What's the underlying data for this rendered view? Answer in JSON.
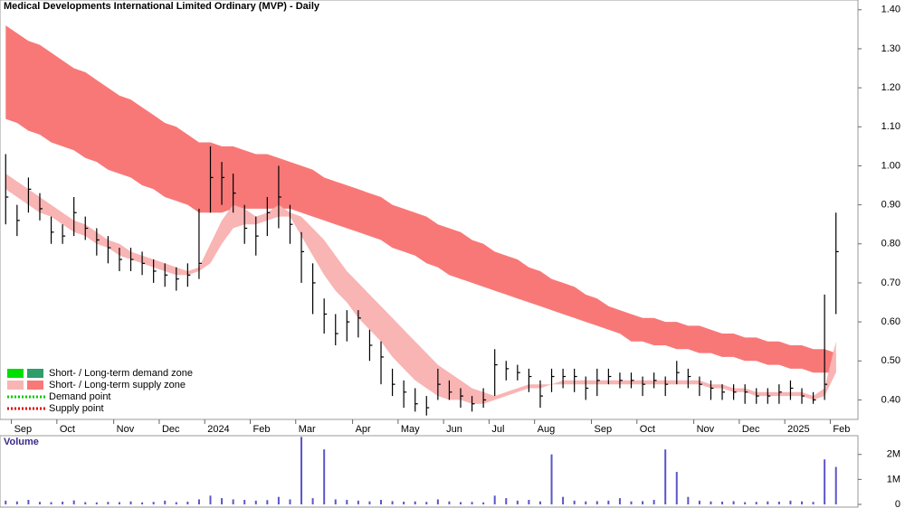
{
  "chart_data": [
    {
      "type": "ohlc",
      "title": "Medical Developments International Limited Ordinary (MVP) - Daily",
      "categories": [
        null,
        "Sep",
        null,
        null,
        null,
        "Oct",
        null,
        null,
        null,
        null,
        "Nov",
        null,
        null,
        null,
        "Dec",
        null,
        null,
        null,
        "2024",
        null,
        null,
        null,
        "Feb",
        null,
        null,
        null,
        "Mar",
        null,
        null,
        null,
        null,
        "Apr",
        null,
        null,
        null,
        "May",
        null,
        null,
        null,
        "Jun",
        null,
        null,
        null,
        "Jul",
        null,
        null,
        null,
        "Aug",
        null,
        null,
        null,
        null,
        "Sep",
        null,
        null,
        null,
        "Oct",
        null,
        null,
        null,
        null,
        "Nov",
        null,
        null,
        null,
        "Dec",
        null,
        null,
        null,
        "2025",
        null,
        null,
        null,
        "Feb"
      ],
      "high": [
        1.03,
        0.9,
        0.97,
        0.93,
        0.87,
        0.85,
        0.92,
        0.87,
        0.84,
        0.82,
        0.79,
        0.79,
        0.78,
        0.76,
        0.75,
        0.74,
        0.75,
        0.89,
        1.05,
        1.01,
        0.98,
        0.9,
        0.87,
        0.92,
        1.0,
        0.9,
        0.83,
        0.75,
        0.66,
        0.62,
        0.63,
        0.63,
        0.58,
        0.55,
        0.48,
        0.45,
        0.43,
        0.41,
        0.48,
        0.45,
        0.43,
        0.41,
        0.43,
        0.53,
        0.5,
        0.49,
        0.48,
        0.45,
        0.48,
        0.48,
        0.48,
        0.46,
        0.48,
        0.48,
        0.47,
        0.47,
        0.46,
        0.47,
        0.46,
        0.5,
        0.48,
        0.46,
        0.45,
        0.44,
        0.44,
        0.44,
        0.43,
        0.43,
        0.44,
        0.45,
        0.43,
        0.42,
        0.67,
        0.88
      ],
      "low": [
        0.85,
        0.82,
        0.88,
        0.86,
        0.8,
        0.8,
        0.82,
        0.81,
        0.77,
        0.75,
        0.73,
        0.73,
        0.72,
        0.7,
        0.69,
        0.68,
        0.69,
        0.71,
        0.88,
        0.9,
        0.88,
        0.8,
        0.77,
        0.82,
        0.84,
        0.8,
        0.7,
        0.62,
        0.57,
        0.54,
        0.55,
        0.56,
        0.5,
        0.44,
        0.41,
        0.38,
        0.37,
        0.36,
        0.4,
        0.4,
        0.38,
        0.37,
        0.38,
        0.41,
        0.45,
        0.45,
        0.42,
        0.38,
        0.42,
        0.43,
        0.42,
        0.4,
        0.41,
        0.44,
        0.43,
        0.43,
        0.41,
        0.43,
        0.41,
        0.44,
        0.43,
        0.41,
        0.4,
        0.4,
        0.4,
        0.39,
        0.39,
        0.39,
        0.39,
        0.4,
        0.39,
        0.39,
        0.4,
        0.62
      ],
      "close": [
        0.92,
        0.86,
        0.94,
        0.89,
        0.83,
        0.82,
        0.88,
        0.84,
        0.81,
        0.79,
        0.76,
        0.76,
        0.75,
        0.73,
        0.72,
        0.71,
        0.72,
        0.75,
        0.97,
        0.97,
        0.93,
        0.84,
        0.82,
        0.88,
        0.92,
        0.85,
        0.78,
        0.7,
        0.62,
        0.57,
        0.6,
        0.61,
        0.54,
        0.51,
        0.44,
        0.42,
        0.39,
        0.38,
        0.44,
        0.42,
        0.41,
        0.39,
        0.4,
        0.49,
        0.48,
        0.47,
        0.46,
        0.41,
        0.46,
        0.46,
        0.46,
        0.43,
        0.45,
        0.46,
        0.45,
        0.45,
        0.44,
        0.45,
        0.44,
        0.47,
        0.46,
        0.44,
        0.43,
        0.42,
        0.42,
        0.42,
        0.41,
        0.41,
        0.42,
        0.43,
        0.41,
        0.4,
        0.44,
        0.78
      ],
      "color": "#000000",
      "bands": [
        {
          "color": "#f87878",
          "upper": [
            1.36,
            1.34,
            1.32,
            1.31,
            1.29,
            1.27,
            1.25,
            1.24,
            1.22,
            1.2,
            1.18,
            1.17,
            1.15,
            1.13,
            1.11,
            1.1,
            1.08,
            1.06,
            1.06,
            1.05,
            1.05,
            1.04,
            1.03,
            1.03,
            1.02,
            1.01,
            1.0,
            0.99,
            0.97,
            0.96,
            0.95,
            0.94,
            0.93,
            0.92,
            0.9,
            0.89,
            0.88,
            0.87,
            0.85,
            0.84,
            0.83,
            0.81,
            0.8,
            0.78,
            0.77,
            0.76,
            0.74,
            0.73,
            0.71,
            0.7,
            0.69,
            0.67,
            0.66,
            0.64,
            0.63,
            0.62,
            0.61,
            0.61,
            0.6,
            0.6,
            0.59,
            0.59,
            0.58,
            0.57,
            0.57,
            0.56,
            0.56,
            0.55,
            0.55,
            0.54,
            0.54,
            0.53,
            0.53,
            0.52
          ],
          "lower": [
            1.12,
            1.11,
            1.09,
            1.08,
            1.06,
            1.05,
            1.04,
            1.02,
            1.01,
            0.99,
            0.98,
            0.97,
            0.95,
            0.94,
            0.92,
            0.91,
            0.9,
            0.88,
            0.88,
            0.88,
            0.89,
            0.89,
            0.89,
            0.89,
            0.89,
            0.89,
            0.88,
            0.87,
            0.86,
            0.85,
            0.84,
            0.83,
            0.82,
            0.81,
            0.79,
            0.78,
            0.77,
            0.75,
            0.74,
            0.72,
            0.71,
            0.7,
            0.69,
            0.68,
            0.67,
            0.66,
            0.65,
            0.64,
            0.63,
            0.62,
            0.61,
            0.6,
            0.59,
            0.58,
            0.57,
            0.55,
            0.55,
            0.54,
            0.54,
            0.53,
            0.53,
            0.52,
            0.52,
            0.51,
            0.51,
            0.5,
            0.5,
            0.49,
            0.49,
            0.48,
            0.48,
            0.47,
            0.47,
            0.47
          ]
        },
        {
          "color": "#f9b4b4",
          "upper": [
            0.98,
            0.96,
            0.94,
            0.92,
            0.9,
            0.88,
            0.86,
            0.85,
            0.83,
            0.81,
            0.8,
            0.78,
            0.77,
            0.76,
            0.75,
            0.74,
            0.73,
            0.74,
            0.8,
            0.86,
            0.9,
            0.89,
            0.87,
            0.88,
            0.9,
            0.88,
            0.87,
            0.84,
            0.81,
            0.77,
            0.73,
            0.7,
            0.67,
            0.64,
            0.61,
            0.58,
            0.55,
            0.52,
            0.49,
            0.47,
            0.45,
            0.43,
            0.42,
            0.41,
            0.42,
            0.43,
            0.44,
            0.44,
            0.44,
            0.45,
            0.45,
            0.45,
            0.45,
            0.45,
            0.45,
            0.45,
            0.45,
            0.45,
            0.45,
            0.45,
            0.45,
            0.45,
            0.44,
            0.44,
            0.43,
            0.43,
            0.42,
            0.42,
            0.42,
            0.42,
            0.42,
            0.41,
            0.43,
            0.55
          ],
          "lower": [
            0.94,
            0.92,
            0.9,
            0.88,
            0.87,
            0.85,
            0.83,
            0.82,
            0.8,
            0.79,
            0.77,
            0.76,
            0.75,
            0.74,
            0.73,
            0.72,
            0.72,
            0.73,
            0.75,
            0.8,
            0.84,
            0.85,
            0.85,
            0.86,
            0.87,
            0.87,
            0.82,
            0.77,
            0.72,
            0.68,
            0.65,
            0.61,
            0.58,
            0.55,
            0.51,
            0.48,
            0.45,
            0.43,
            0.41,
            0.4,
            0.4,
            0.39,
            0.39,
            0.4,
            0.41,
            0.42,
            0.43,
            0.43,
            0.44,
            0.44,
            0.44,
            0.44,
            0.44,
            0.44,
            0.44,
            0.44,
            0.44,
            0.44,
            0.44,
            0.44,
            0.44,
            0.44,
            0.43,
            0.43,
            0.42,
            0.42,
            0.41,
            0.41,
            0.41,
            0.41,
            0.41,
            0.4,
            0.41,
            0.47
          ]
        }
      ],
      "legend": [
        {
          "name": "Short- / Long-term demand zone",
          "colors": [
            "#00e000",
            "#2e9e6a"
          ],
          "style": "box"
        },
        {
          "name": "Short- / Long-term supply zone",
          "colors": [
            "#f9b4b4",
            "#f87878"
          ],
          "style": "box"
        },
        {
          "name": "Demand point",
          "colors": [
            "#00cc00"
          ],
          "style": "dots"
        },
        {
          "name": "Supply point",
          "colors": [
            "#dd0000"
          ],
          "style": "dots"
        }
      ],
      "ylim": [
        0.35,
        1.425
      ],
      "yticks": [
        {
          "value": 0.4,
          "label": "0.40"
        },
        {
          "value": 0.5,
          "label": "0.50"
        },
        {
          "value": 0.6,
          "label": "0.60"
        },
        {
          "value": 0.7,
          "label": "0.70"
        },
        {
          "value": 0.8,
          "label": "0.80"
        },
        {
          "value": 0.9,
          "label": "0.90"
        },
        {
          "value": 1.0,
          "label": "1.00"
        },
        {
          "value": 1.1,
          "label": "1.10"
        },
        {
          "value": 1.2,
          "label": "1.20"
        },
        {
          "value": 1.3,
          "label": "1.30"
        },
        {
          "value": 1.4,
          "label": "1.40"
        }
      ]
    },
    {
      "type": "bar",
      "title": "Volume",
      "values": [
        150000,
        120000,
        180000,
        100000,
        90000,
        110000,
        160000,
        90000,
        80000,
        100000,
        90000,
        120000,
        80000,
        100000,
        150000,
        90000,
        110000,
        200000,
        350000,
        250000,
        200000,
        180000,
        150000,
        170000,
        300000,
        200000,
        2700000,
        250000,
        2200000,
        200000,
        180000,
        150000,
        120000,
        180000,
        130000,
        110000,
        120000,
        100000,
        200000,
        120000,
        90000,
        100000,
        80000,
        350000,
        250000,
        150000,
        180000,
        120000,
        2000000,
        300000,
        150000,
        120000,
        130000,
        150000,
        250000,
        120000,
        130000,
        180000,
        2200000,
        1300000,
        300000,
        150000,
        120000,
        110000,
        130000,
        90000,
        100000,
        120000,
        110000,
        150000,
        120000,
        100000,
        1800000,
        1500000
      ],
      "color": "#5b55c9",
      "ylim": [
        0,
        2750000
      ],
      "yticks": [
        {
          "value": 2000000,
          "label": "2M"
        },
        {
          "value": 1000000,
          "label": "1M"
        },
        0
      ]
    }
  ]
}
